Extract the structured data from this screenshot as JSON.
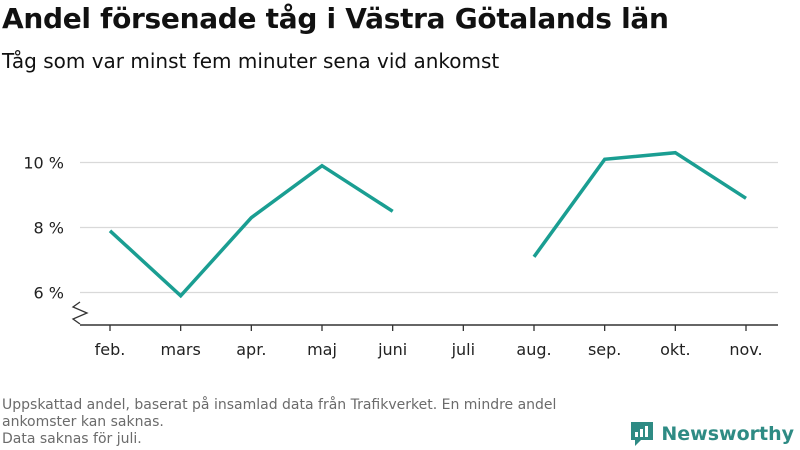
{
  "header": {
    "title": "Andel försenade tåg i Västra Götalands län",
    "subtitle": "Tåg som var minst fem minuter sena vid ankomst"
  },
  "footer": {
    "note_1": "Uppskattad andel, baserat på insamlad data från Trafikverket. En mindre andel ankomster kan saknas.",
    "note_2": "Data saknas för juli.",
    "brand": "Newsworthy",
    "brand_icon": "newsworthy-logo-icon"
  },
  "colors": {
    "line": "#1a9e92",
    "grid": "#d9d9d9",
    "axis": "#333333",
    "brand": "#2e8b84"
  },
  "chart_data": {
    "type": "line",
    "title": "Andel försenade tåg i Västra Götalands län",
    "subtitle": "Tåg som var minst fem minuter sena vid ankomst",
    "categories": [
      "feb.",
      "mars",
      "apr.",
      "maj",
      "juni",
      "juli",
      "aug.",
      "sep.",
      "okt.",
      "nov."
    ],
    "series": [
      {
        "values": [
          7.9,
          5.9,
          8.3,
          9.9,
          8.5,
          null,
          7.1,
          10.1,
          10.3,
          8.9
        ]
      }
    ],
    "yticks": [
      6,
      8,
      10
    ],
    "ytick_labels": [
      "6 %",
      "8 %",
      "10 %"
    ],
    "ylim": [
      5.0,
      11.0
    ],
    "y_axis_break": true,
    "grid": true,
    "legend": "none"
  }
}
